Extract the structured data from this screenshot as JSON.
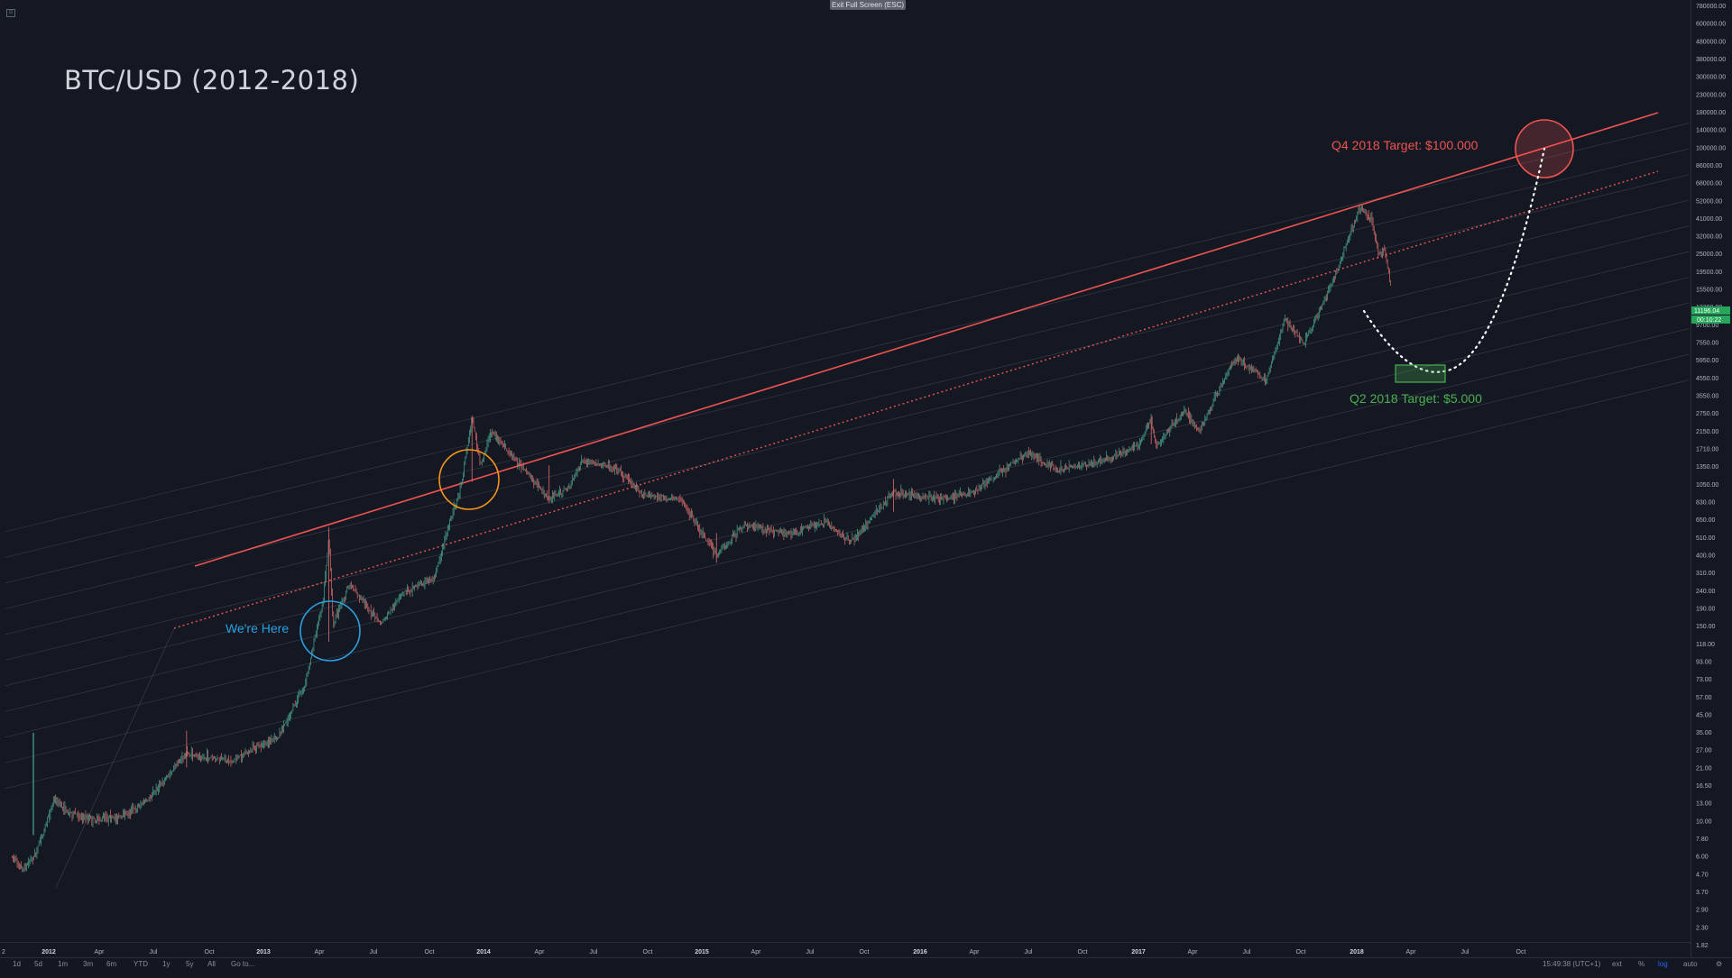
{
  "ui": {
    "exit_fullscreen": "Exit Full Screen (ESC)",
    "timeframes": [
      "1d",
      "5d",
      "1m",
      "3m",
      "6m",
      "YTD",
      "1y",
      "5y",
      "All",
      "Go to..."
    ],
    "clock": "15:49:38 (UTC+1)",
    "right_buttons": [
      "ext",
      "%",
      "log",
      "auto"
    ],
    "price_tag": "11196.04",
    "time_tag": "00:10:22"
  },
  "chart_data": {
    "type": "candlestick",
    "title": "BTC/USD (2012-2018)",
    "y_scale": "log",
    "y_ticks": [
      "780000.00",
      "600000.00",
      "480000.00",
      "380000.00",
      "300000.00",
      "230000.00",
      "180000.00",
      "140000.00",
      "100000.00",
      "86000.00",
      "68000.00",
      "52000.00",
      "41000.00",
      "32000.00",
      "25000.00",
      "19500.00",
      "15500.00",
      "12300.00",
      "9700.00",
      "7550.00",
      "5950.00",
      "4550.00",
      "3550.00",
      "2750.00",
      "2150.00",
      "1710.00",
      "1350.00",
      "1050.00",
      "830.00",
      "650.00",
      "510.00",
      "400.00",
      "310.00",
      "240.00",
      "190.00",
      "150.00",
      "118.00",
      "93.00",
      "73.00",
      "57.00",
      "45.00",
      "35.00",
      "27.00",
      "21.00",
      "16.50",
      "13.00",
      "10.00",
      "7.80",
      "6.00",
      "4.70",
      "3.70",
      "2.90",
      "2.30",
      "1.82"
    ],
    "x_ticks": [
      "2012",
      "Apr",
      "Jul",
      "Oct",
      "2013",
      "Apr",
      "Jul",
      "Oct",
      "2014",
      "Apr",
      "Jul",
      "Oct",
      "2015",
      "Apr",
      "Jul",
      "Oct",
      "2016",
      "Apr",
      "Jul",
      "Oct",
      "2017",
      "Apr",
      "Jul",
      "Oct",
      "2018",
      "Apr",
      "Jul",
      "Oct"
    ],
    "x_start_label": "2",
    "price_path": [
      [
        "2011-11-01",
        3.0
      ],
      [
        "2011-11-20",
        2.5
      ],
      [
        "2011-12-10",
        3.1
      ],
      [
        "2012-01-10",
        6.5
      ],
      [
        "2012-02-01",
        5.5
      ],
      [
        "2012-03-15",
        4.9
      ],
      [
        "2012-05-01",
        5.1
      ],
      [
        "2012-06-15",
        6.5
      ],
      [
        "2012-08-15",
        12
      ],
      [
        "2012-09-15",
        11.5
      ],
      [
        "2012-11-01",
        11
      ],
      [
        "2012-12-15",
        13.3
      ],
      [
        "2013-01-15",
        15
      ],
      [
        "2013-03-01",
        30
      ],
      [
        "2013-04-01",
        100
      ],
      [
        "2013-04-10",
        230
      ],
      [
        "2013-04-17",
        70
      ],
      [
        "2013-05-15",
        120
      ],
      [
        "2013-07-05",
        70
      ],
      [
        "2013-08-15",
        110
      ],
      [
        "2013-10-01",
        130
      ],
      [
        "2013-11-15",
        450
      ],
      [
        "2013-12-04",
        1150
      ],
      [
        "2013-12-18",
        600
      ],
      [
        "2014-01-05",
        950
      ],
      [
        "2014-02-15",
        640
      ],
      [
        "2014-04-10",
        380
      ],
      [
        "2014-05-15",
        450
      ],
      [
        "2014-06-05",
        640
      ],
      [
        "2014-08-01",
        580
      ],
      [
        "2014-09-15",
        400
      ],
      [
        "2014-11-15",
        380
      ],
      [
        "2015-01-14",
        175
      ],
      [
        "2015-03-01",
        270
      ],
      [
        "2015-05-15",
        235
      ],
      [
        "2015-07-15",
        280
      ],
      [
        "2015-08-25",
        210
      ],
      [
        "2015-11-04",
        420
      ],
      [
        "2016-01-15",
        380
      ],
      [
        "2016-03-15",
        415
      ],
      [
        "2016-06-15",
        720
      ],
      [
        "2016-08-01",
        560
      ],
      [
        "2016-10-15",
        640
      ],
      [
        "2016-12-15",
        780
      ],
      [
        "2017-01-04",
        1150
      ],
      [
        "2017-01-12",
        780
      ],
      [
        "2017-03-01",
        1250
      ],
      [
        "2017-03-25",
        950
      ],
      [
        "2017-05-25",
        2600
      ],
      [
        "2017-07-15",
        1900
      ],
      [
        "2017-08-15",
        4400
      ],
      [
        "2017-09-15",
        3100
      ],
      [
        "2017-11-01",
        7000
      ],
      [
        "2017-12-17",
        19800
      ],
      [
        "2018-01-06",
        17000
      ],
      [
        "2018-01-17",
        10500
      ],
      [
        "2018-01-28",
        11300
      ],
      [
        "2018-02-06",
        7000
      ],
      [
        "2018-02-08",
        8100
      ]
    ],
    "annotations": [
      {
        "text": "We're Here",
        "color": "#2b9fe0",
        "date": "2013-04-15",
        "price": 150
      },
      {
        "text": "Q4 2018 Target: $100.000",
        "color": "#f05350",
        "date": "2018-10-15",
        "price": 100000
      },
      {
        "text": "Q2 2018 Target: $5.000",
        "color": "#4caf50",
        "date": "2018-05-01",
        "price": 5000
      }
    ],
    "colors": {
      "background": "#141823",
      "bull": "#4ba68f",
      "bear": "#e06c6c",
      "resistance": "#f05350",
      "channel": "#5c606b",
      "text": "#b2b5be"
    }
  }
}
